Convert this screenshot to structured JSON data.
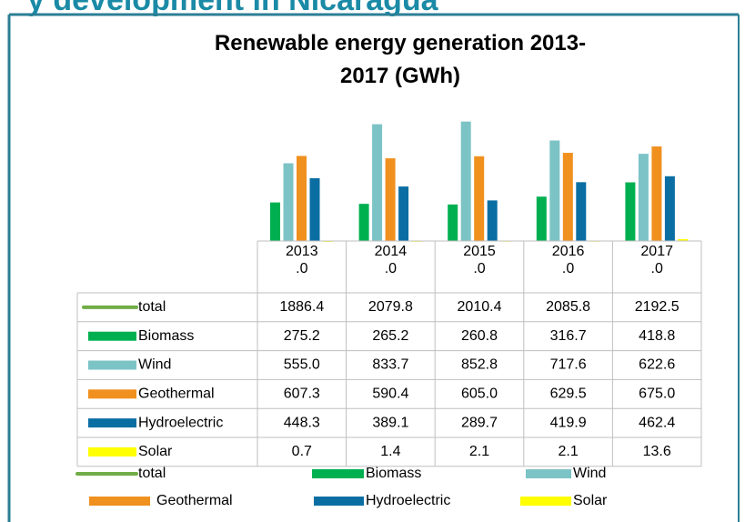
{
  "heading": "y development in Nicaragua",
  "chart_data": {
    "type": "bar",
    "title": "Renewable energy generation 2013-2017 (GWh)",
    "categories": [
      "2013.0",
      "2014.0",
      "2015.0",
      "2016.0",
      "2017.0"
    ],
    "ylim": [
      0,
      1000
    ],
    "legend": "bottom",
    "series": [
      {
        "name": "total",
        "color": "#70ad47",
        "style": "line",
        "values": [
          1886.4,
          2079.8,
          2010.4,
          2085.8,
          2192.5
        ]
      },
      {
        "name": "Biomass",
        "color": "#00b050",
        "values": [
          275.2,
          265.2,
          260.8,
          316.7,
          418.8
        ]
      },
      {
        "name": "Wind",
        "color": "#7cc3c6",
        "values": [
          555,
          833.7,
          852.8,
          717.6,
          622.6
        ],
        "value_labels": [
          "555.0",
          "833.7",
          "852.8",
          "717.6",
          "622.6"
        ]
      },
      {
        "name": "Geothermal",
        "color": "#f0901e",
        "values": [
          607.3,
          590.4,
          605,
          629.5,
          675
        ],
        "value_labels": [
          "607.3",
          "590.4",
          "605.0",
          "629.5",
          "675.0"
        ]
      },
      {
        "name": "Hydroelectric",
        "color": "#0b6ea3",
        "values": [
          448.3,
          389.1,
          289.7,
          419.9,
          462.4
        ]
      },
      {
        "name": "Solar",
        "color": "#ffff00",
        "values": [
          0.7,
          1.4,
          2.1,
          2.1,
          13.6
        ]
      }
    ]
  }
}
